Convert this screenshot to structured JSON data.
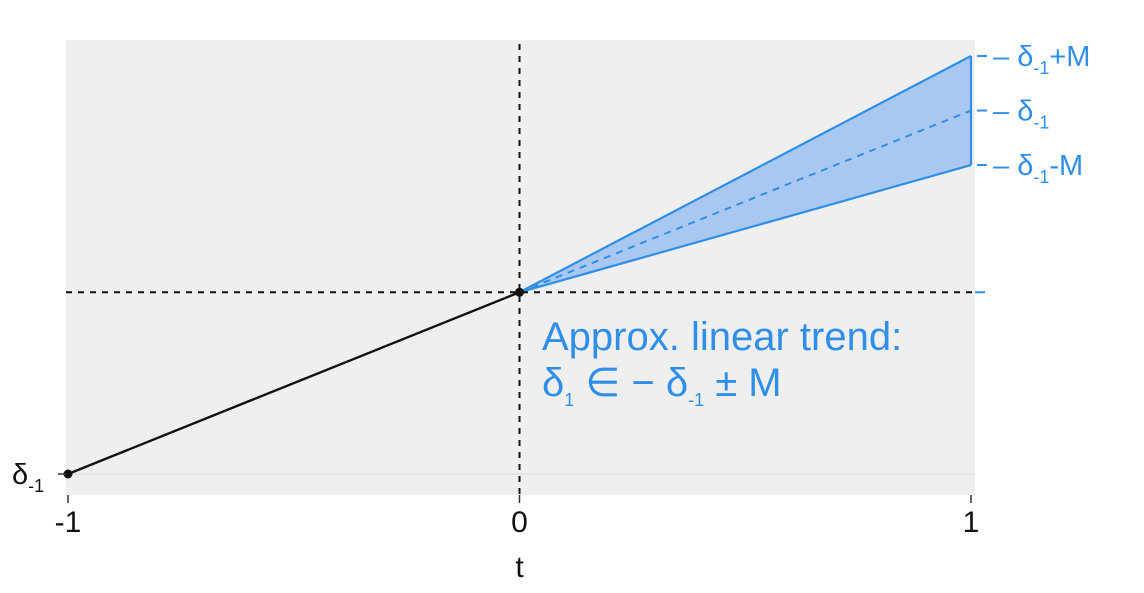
{
  "chart_data": {
    "type": "line",
    "title": "",
    "xlabel": "t",
    "ylabel": "",
    "x_ticks": [
      "-1",
      "0",
      "1"
    ],
    "xlim": [
      -1,
      1
    ],
    "ylim": [
      -1.1,
      1.95
    ],
    "grid": false,
    "series": [
      {
        "kind": "observed-path",
        "x": [
          -1,
          0
        ],
        "y": [
          -1,
          0
        ],
        "points": true
      },
      {
        "kind": "center-trend",
        "x": [
          0,
          1
        ],
        "y": [
          0,
          1
        ],
        "dashed": true
      },
      {
        "kind": "band",
        "x": [
          0,
          1
        ],
        "lower": [
          0,
          0.7
        ],
        "upper": [
          0,
          1.3
        ],
        "fill_opacity": 0.4
      }
    ],
    "reference_lines": {
      "vertical_x": 0,
      "horizontal_y": 0,
      "style": "dashed"
    },
    "left_label": {
      "base": "δ",
      "sub": "-1"
    },
    "right_labels": [
      {
        "base": "δ",
        "sub": "-1",
        "suffix": "+M",
        "y": 1.3
      },
      {
        "base": "δ",
        "sub": "-1",
        "suffix": "",
        "y": 1.0
      },
      {
        "base": "δ",
        "sub": "-1",
        "suffix": "-M",
        "y": 0.7
      }
    ],
    "annotation": {
      "line1": "Approx. linear trend:",
      "line2": {
        "base1": "δ",
        "sub1": "1",
        "symbol": "∈",
        "minus": "−",
        "base2": "δ",
        "sub2": "-1",
        "rest": "± M"
      }
    },
    "colors": {
      "accent": "#2f8fe8",
      "band_fill": "#a9c8f1",
      "panel": "#efefef",
      "observed": "#111111",
      "reference": "#111111"
    }
  }
}
